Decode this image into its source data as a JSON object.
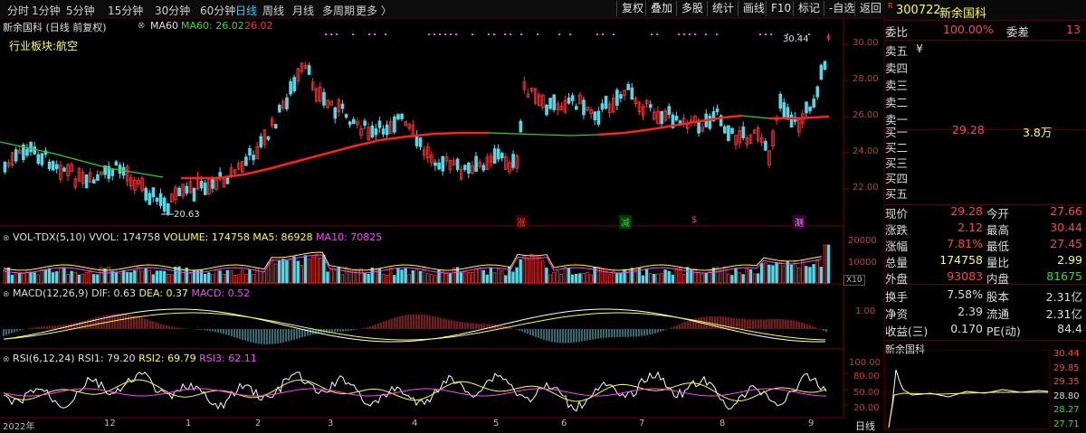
{
  "toolbar": {
    "periods": [
      "分时",
      "1分钟",
      "5分钟",
      "15分钟",
      "30分钟",
      "60分钟",
      "日线",
      "周线",
      "月线",
      "多周期",
      "更多 〉"
    ],
    "active_period": "日线",
    "buttons": [
      "复权",
      "叠加",
      "多股",
      "统计",
      "画线",
      "F10",
      "标记",
      "-自选",
      "返回"
    ]
  },
  "main_chart": {
    "title": "新余国科 (日线 前复权)",
    "ma_icon": "circle-x-icon",
    "ma_label": "MA60",
    "ma_value_label": "MA60: 26.02",
    "last_value_label": "26.02",
    "sector": "行业板块:航空",
    "y_ticks": [
      "30.00",
      "28.00",
      "26.00",
      "24.00",
      "22.00"
    ],
    "high_marker": "30.44",
    "low_marker": "20.63",
    "event_tags": [
      "涨",
      "减",
      "$",
      "测"
    ]
  },
  "volume_panel": {
    "indicator": "VOL-TDX(5,10)",
    "vvol": "VVOL: 174758",
    "volume": "VOLUME: 174758",
    "ma5": "MA5: 86928",
    "ma10": "MA10: 70825",
    "y_ticks": [
      "20000",
      "10000"
    ],
    "multiplier": "X10"
  },
  "macd_panel": {
    "indicator": "MACD(12,26,9)",
    "dif": "DIF: 0.63",
    "dea": "DEA: 0.37",
    "macd": "MACD: 0.52",
    "y_ticks": [
      "1.00"
    ]
  },
  "rsi_panel": {
    "indicator": "RSI(6,12,24)",
    "rsi1": "RSI1: 79.20",
    "rsi2": "RSI2: 69.79",
    "rsi3": "RSI3: 62.11",
    "y_ticks": [
      "100.00",
      "80.00",
      "50.00",
      "20.00"
    ]
  },
  "x_axis": {
    "labels": [
      "2022年",
      "12",
      "1",
      "2",
      "3",
      "4",
      "5",
      "6",
      "7",
      "8",
      "9"
    ],
    "period_label": "日线"
  },
  "quote": {
    "badge": "R",
    "code": "300722",
    "name": "新余国科",
    "wb_label": "委比",
    "wb_value": "100.00%",
    "wc_label": "委差",
    "wc_value": "13",
    "asks": [
      {
        "label": "卖五",
        "price": "¥",
        "vol": ""
      },
      {
        "label": "卖四",
        "price": "",
        "vol": ""
      },
      {
        "label": "卖三",
        "price": "",
        "vol": ""
      },
      {
        "label": "卖二",
        "price": "",
        "vol": ""
      },
      {
        "label": "卖一",
        "price": "",
        "vol": ""
      }
    ],
    "bids": [
      {
        "label": "买一",
        "price": "29.28",
        "vol": "3.8万"
      },
      {
        "label": "买二",
        "price": "",
        "vol": ""
      },
      {
        "label": "买三",
        "price": "",
        "vol": ""
      },
      {
        "label": "买四",
        "price": "",
        "vol": ""
      },
      {
        "label": "买五",
        "price": "",
        "vol": ""
      }
    ],
    "stats": [
      {
        "l1": "现价",
        "v1": "29.28",
        "c1": "#ff4444",
        "l2": "今开",
        "v2": "27.66",
        "c2": "#ff4444"
      },
      {
        "l1": "涨跌",
        "v1": "2.12",
        "c1": "#ff4444",
        "l2": "最高",
        "v2": "30.44",
        "c2": "#ff4444"
      },
      {
        "l1": "涨幅",
        "v1": "7.81%",
        "c1": "#ff4444",
        "l2": "最低",
        "v2": "27.45",
        "c2": "#ff4444"
      },
      {
        "l1": "总量",
        "v1": "174758",
        "c1": "#ffff55",
        "l2": "量比",
        "v2": "2.99",
        "c2": "#ffff55"
      },
      {
        "l1": "外盘",
        "v1": "93083",
        "c1": "#ff4444",
        "l2": "内盘",
        "v2": "81675",
        "c2": "#33dd33"
      }
    ],
    "stats2": [
      {
        "l1": "换手",
        "v1": "7.58%",
        "c1": "#dddddd",
        "l2": "股本",
        "v2": "2.31亿",
        "c2": "#dddddd"
      },
      {
        "l1": "净资",
        "v1": "2.39",
        "c1": "#dddddd",
        "l2": "流通",
        "v2": "2.31亿",
        "c2": "#dddddd"
      },
      {
        "l1": "收益(三)",
        "v1": "0.170",
        "c1": "#dddddd",
        "l2": "PE(动)",
        "v2": "84.4",
        "c2": "#dddddd"
      }
    ],
    "mini_title": "新余国科",
    "mini_ticks": [
      "30.44",
      "29.85",
      "29.35",
      "28.80",
      "28.27",
      "27.71"
    ]
  }
}
